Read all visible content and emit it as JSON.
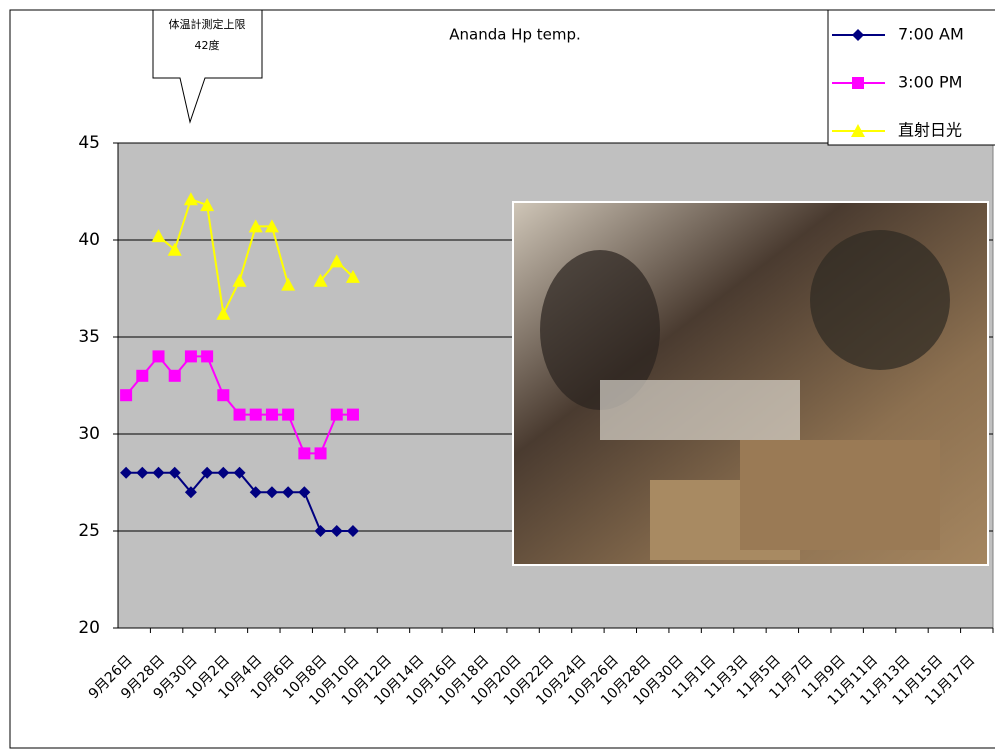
{
  "chart_data": {
    "type": "line",
    "title": "Ananda Hp temp.",
    "annotations": [
      "体温計測定上限",
      "42度"
    ],
    "categories": [
      "9月26日",
      null,
      "9月28日",
      null,
      "9月30日",
      null,
      "10月2日",
      null,
      "10月4日",
      null,
      "10月6日",
      null,
      "10月8日",
      null,
      "10月10日",
      null,
      "10月12日",
      null,
      "10月14日",
      null,
      "10月16日",
      null,
      "10月18日",
      null,
      "10月20日",
      null,
      "10月22日",
      null,
      "10月24日",
      null,
      "10月26日",
      null,
      "10月28日",
      null,
      "10月30日",
      null,
      "11月1日",
      null,
      "11月3日",
      null,
      "11月5日",
      null,
      "11月7日",
      null,
      "11月9日",
      null,
      "11月11日",
      null,
      "11月13日",
      null,
      "11月15日",
      null,
      "11月17日",
      null
    ],
    "series": [
      {
        "name": "7:00 AM",
        "color": "#000080",
        "marker": "diamond",
        "values": [
          28,
          28,
          28,
          28,
          27,
          28,
          28,
          28,
          27,
          27,
          27,
          27,
          25,
          25,
          25,
          null,
          null,
          null,
          null,
          null,
          null,
          null,
          null,
          null,
          null,
          null,
          null,
          null,
          null,
          null,
          null,
          null,
          null,
          null,
          null,
          null,
          null,
          null,
          null,
          null,
          null,
          null,
          null,
          null,
          null,
          null,
          null,
          null,
          null,
          null,
          null,
          null,
          null,
          null
        ]
      },
      {
        "name": "3:00 PM",
        "color": "#ff00ff",
        "marker": "square",
        "values": [
          32,
          33,
          34,
          33,
          34,
          34,
          32,
          31,
          31,
          31,
          31,
          29,
          29,
          31,
          31,
          null,
          null,
          null,
          null,
          null,
          null,
          null,
          null,
          null,
          null,
          null,
          null,
          null,
          null,
          null,
          null,
          null,
          null,
          null,
          null,
          null,
          null,
          null,
          null,
          null,
          null,
          null,
          null,
          null,
          null,
          null,
          null,
          null,
          null,
          null,
          null,
          null,
          null,
          null
        ]
      },
      {
        "name": "直射日光",
        "color": "#ffff00",
        "marker": "triangle",
        "values": [
          null,
          null,
          40.2,
          39.5,
          42.1,
          41.8,
          36.2,
          37.9,
          40.7,
          40.7,
          37.7,
          null,
          37.9,
          38.9,
          38.1,
          null,
          null,
          null,
          null,
          null,
          null,
          null,
          null,
          null,
          null,
          null,
          null,
          null,
          null,
          null,
          null,
          null,
          null,
          null,
          null,
          null,
          null,
          null,
          null,
          null,
          null,
          null,
          null,
          null,
          null,
          null,
          null,
          null,
          null,
          null,
          null,
          null,
          null,
          null
        ]
      }
    ],
    "ylim": [
      20,
      45
    ],
    "yticks": [
      20,
      25,
      30,
      35,
      40,
      45
    ],
    "grid": true,
    "legend": "top-right",
    "plot_background": "#c0c0c0"
  }
}
